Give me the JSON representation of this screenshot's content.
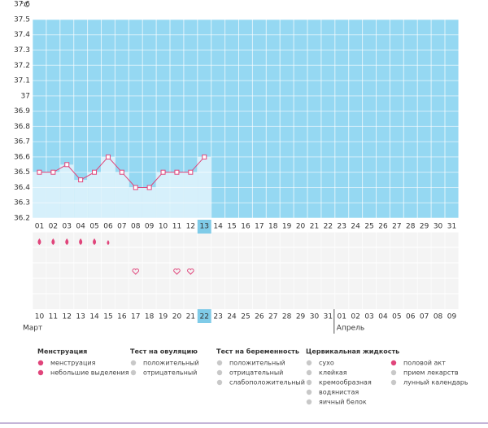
{
  "chart_data": {
    "type": "line",
    "unit": "°C",
    "categories": [
      "01",
      "02",
      "03",
      "04",
      "05",
      "06",
      "07",
      "08",
      "09",
      "10",
      "11",
      "12",
      "13",
      "14",
      "15",
      "16",
      "17",
      "18",
      "19",
      "20",
      "21",
      "22",
      "23",
      "24",
      "25",
      "26",
      "27",
      "28",
      "29",
      "30",
      "31"
    ],
    "values": [
      36.5,
      36.5,
      36.55,
      36.45,
      36.5,
      36.6,
      36.5,
      36.4,
      36.4,
      36.5,
      36.5,
      36.5,
      36.6,
      null,
      null,
      null,
      null,
      null,
      null,
      null,
      null,
      null,
      null,
      null,
      null,
      null,
      null,
      null,
      null,
      null,
      null
    ],
    "color": "#e0457b",
    "fill_color": "#d6f0fb",
    "plot_color": "#95d8f2",
    "ylim": [
      36.2,
      37.6
    ],
    "yticks": [
      36.2,
      36.3,
      36.4,
      36.5,
      36.6,
      36.7,
      36.8,
      36.9,
      37,
      37.1,
      37.2,
      37.3,
      37.4,
      37.5,
      37.6
    ],
    "highlight_index": 12,
    "menstruation": [
      true,
      true,
      true,
      true,
      true,
      false,
      false,
      false,
      false,
      false,
      false,
      false,
      false,
      false,
      false,
      false,
      false,
      false,
      false,
      false,
      false,
      false,
      false,
      false,
      false,
      false,
      false,
      false,
      false,
      false,
      false
    ],
    "spotting": [
      false,
      false,
      false,
      false,
      false,
      true,
      false,
      false,
      false,
      false,
      false,
      false,
      false,
      false,
      false,
      false,
      false,
      false,
      false,
      false,
      false,
      false,
      false,
      false,
      false,
      false,
      false,
      false,
      false,
      false,
      false
    ],
    "intercourse": [
      false,
      false,
      false,
      false,
      false,
      false,
      false,
      true,
      false,
      false,
      true,
      true,
      false,
      false,
      false,
      false,
      false,
      false,
      false,
      false,
      false,
      false,
      false,
      false,
      false,
      false,
      false,
      false,
      false,
      false,
      false
    ],
    "dates": [
      "10",
      "11",
      "12",
      "13",
      "14",
      "15",
      "16",
      "17",
      "18",
      "19",
      "20",
      "21",
      "22",
      "23",
      "24",
      "25",
      "26",
      "27",
      "28",
      "29",
      "30",
      "31",
      "01",
      "02",
      "03",
      "04",
      "05",
      "06",
      "07",
      "08",
      "09"
    ],
    "date_colors": [
      "#e0245e",
      "#e0245e",
      "#333",
      "#333",
      "#333",
      "#333",
      "#333",
      "#e0245e",
      "#e0245e",
      "#333",
      "#333",
      "#333",
      "#333",
      "#333",
      "#e0245e",
      "#e0245e",
      "#333",
      "#333",
      "#333",
      "#333",
      "#333",
      "#e0245e",
      "#e0245e",
      "#333",
      "#333",
      "#333",
      "#333",
      "#333",
      "#e0245e",
      "#e0245e",
      "#333"
    ],
    "months": [
      "Март",
      "Апрель"
    ],
    "month_start_indices": [
      0,
      22
    ]
  },
  "legend": {
    "groups": [
      {
        "title": "Менструация",
        "items": [
          "менструация",
          "небольшие выделения"
        ]
      },
      {
        "title": "Тест на овуляцию",
        "items": [
          "положительный",
          "отрицательный"
        ]
      },
      {
        "title": "Тест на беременность",
        "items": [
          "положительный",
          "отрицательный",
          "слабоположительный"
        ]
      },
      {
        "title": "Цервикальная жидкость",
        "items": [
          "сухо",
          "клейкая",
          "кремообразная",
          "водянистая",
          "яичный белок"
        ]
      },
      {
        "items": [
          "половой акт",
          "прием лекарств",
          "лунный календарь"
        ]
      }
    ]
  }
}
